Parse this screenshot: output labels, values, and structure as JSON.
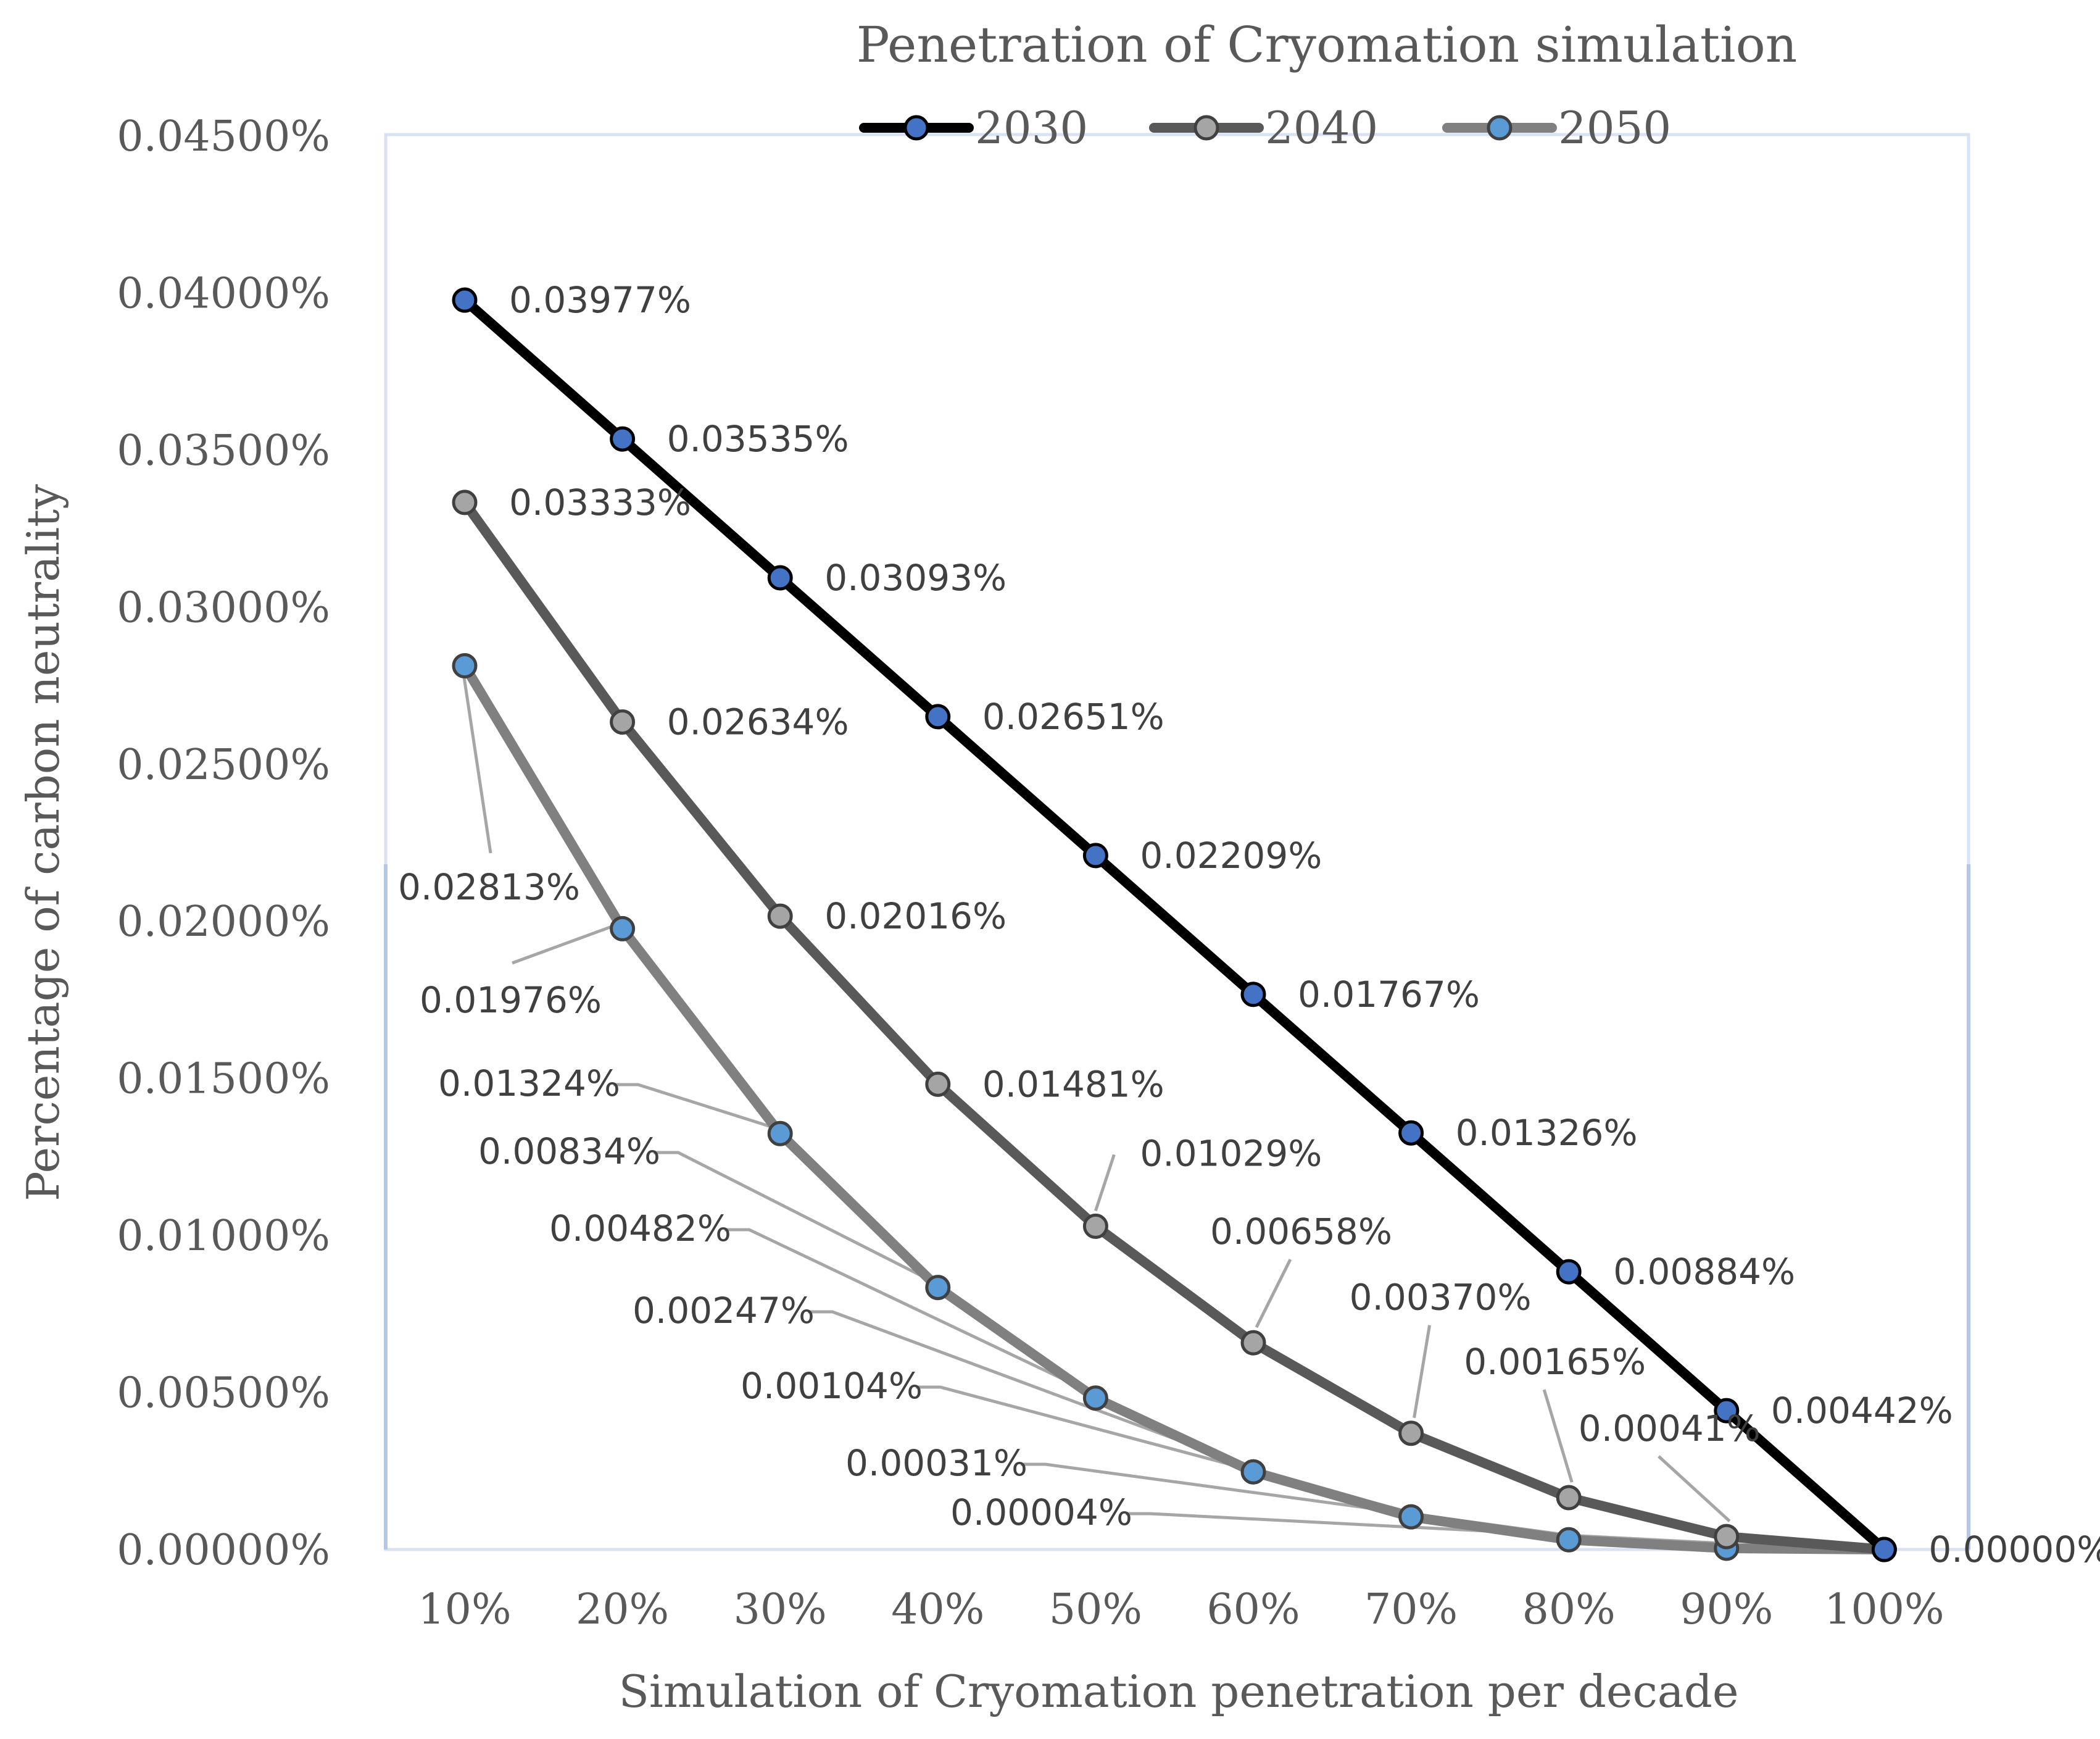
{
  "chart_data": {
    "type": "line",
    "title": "Penetration of Cryomation simulation",
    "xlabel": "Simulation of Cryomation penetration per decade",
    "ylabel": "Percentage of carbon neutrality",
    "categories": [
      "10%",
      "20%",
      "30%",
      "40%",
      "50%",
      "60%",
      "70%",
      "80%",
      "90%",
      "100%"
    ],
    "y_ticks": [
      "0.00000%",
      "0.00500%",
      "0.01000%",
      "0.01500%",
      "0.02000%",
      "0.02500%",
      "0.03000%",
      "0.03500%",
      "0.04000%",
      "0.04500%"
    ],
    "ylim": [
      0,
      0.045
    ],
    "grid": false,
    "legend_position": "top",
    "series": [
      {
        "name": "2030",
        "values": [
          0.03977,
          0.03535,
          0.03093,
          0.02651,
          0.02209,
          0.01767,
          0.01326,
          0.00884,
          0.00442,
          0.0
        ],
        "labels": [
          "0.03977%",
          "0.03535%",
          "0.03093%",
          "0.02651%",
          "0.02209%",
          "0.01767%",
          "0.01326%",
          "0.00884%",
          "0.00442%",
          "0.00000%"
        ],
        "line_color": "#000000",
        "marker_color": "#4472C4"
      },
      {
        "name": "2040",
        "values": [
          0.03333,
          0.02634,
          0.02016,
          0.01481,
          0.01029,
          0.00658,
          0.0037,
          0.00165,
          0.00041,
          0.0
        ],
        "labels": [
          "0.03333%",
          "0.02634%",
          "0.02016%",
          "0.01481%",
          "0.01029%",
          "0.00658%",
          "0.00370%",
          "0.00165%",
          "0.00041%",
          ""
        ],
        "line_color": "#595959",
        "marker_color": "#A5A5A5"
      },
      {
        "name": "2050",
        "values": [
          0.02813,
          0.01976,
          0.01324,
          0.00834,
          0.00482,
          0.00247,
          0.00104,
          0.00031,
          4e-05,
          0.0
        ],
        "labels": [
          "0.02813%",
          "0.01976%",
          "0.01324%",
          "0.00834%",
          "0.00482%",
          "0.00247%",
          "0.00104%",
          "0.00031%",
          "0.00004%",
          ""
        ],
        "line_color": "#808080",
        "marker_color": "#5B9BD5"
      }
    ]
  }
}
